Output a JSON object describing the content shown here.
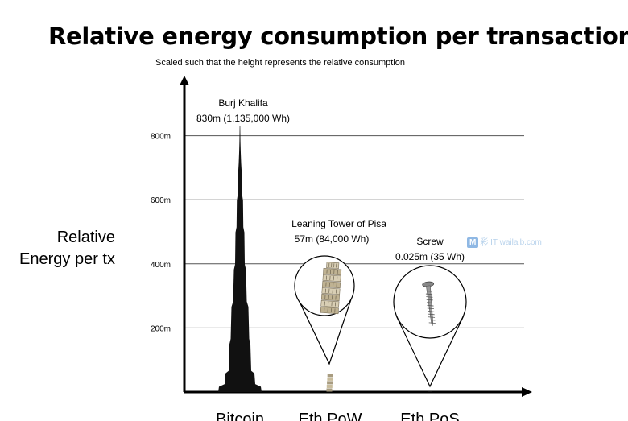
{
  "chart_data": {
    "type": "bar",
    "title": "Relative energy consumption per transaction",
    "subtitle": "Scaled such that the height represents the relative consumption",
    "ylabel_lines": [
      "Relative",
      "Energy per tx"
    ],
    "ylim": [
      0,
      900
    ],
    "yticks": [
      {
        "value": 200,
        "label": "200m"
      },
      {
        "value": 400,
        "label": "400m"
      },
      {
        "value": 600,
        "label": "600m"
      },
      {
        "value": 800,
        "label": "800m"
      }
    ],
    "grid": true,
    "categories": [
      "Bitcoin",
      "Eth PoW",
      "Eth PoS"
    ],
    "values": [
      830,
      57,
      0.025
    ],
    "annotations": [
      {
        "category": "Bitcoin",
        "name": "Burj Khalifa",
        "detail": "830m (1,135,000 Wh)",
        "height_m": 830,
        "wh": 1135000
      },
      {
        "category": "Eth PoW",
        "name": "Leaning Tower of Pisa",
        "detail": "57m (84,000 Wh)",
        "height_m": 57,
        "wh": 84000
      },
      {
        "category": "Eth PoS",
        "name": "Screw",
        "detail": "0.025m (35 Wh)",
        "height_m": 0.025,
        "wh": 35
      }
    ]
  },
  "watermark": {
    "badge": "M",
    "text": "彩 IT  wailaib.com"
  }
}
